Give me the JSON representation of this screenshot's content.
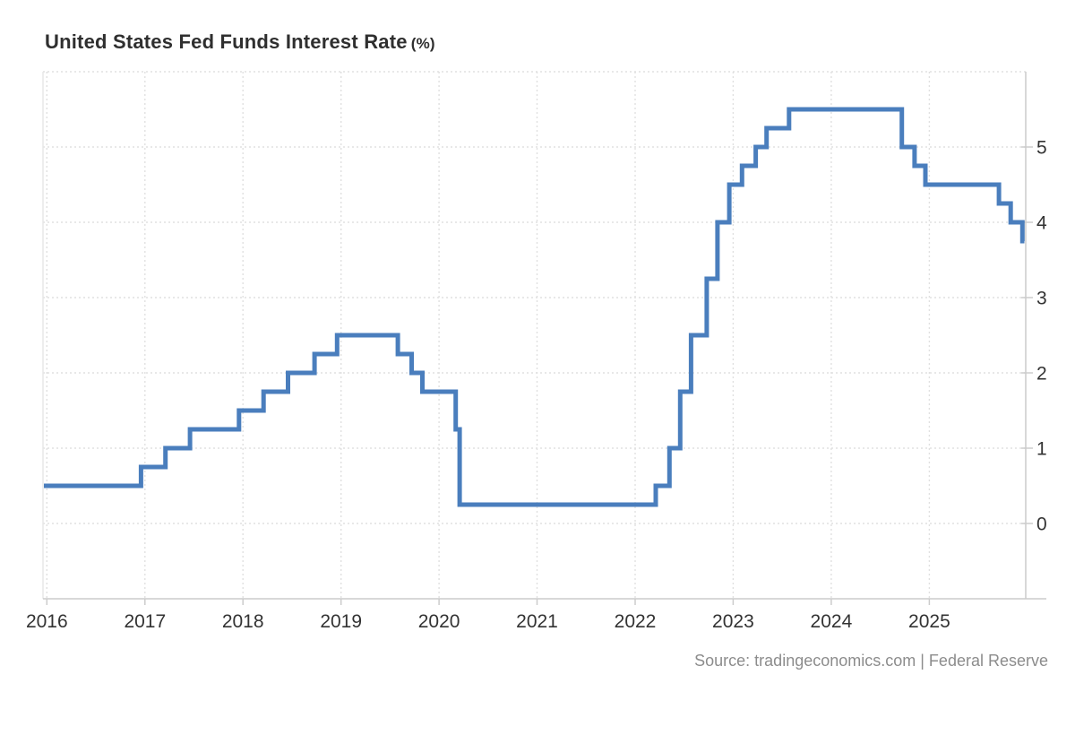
{
  "title": {
    "main": "United States Fed Funds Interest Rate",
    "unit": "(%)"
  },
  "source": "Source: tradingeconomics.com | Federal Reserve",
  "colors": {
    "line": "#4a7ebd",
    "grid": "#e0e0e0",
    "axis": "#cccccc",
    "tick_label": "#333333",
    "title_text": "#2f2f2f",
    "source_text": "#8c8c8c"
  },
  "chart_data": {
    "type": "line",
    "line_style": "step-after",
    "title": "United States Fed Funds Interest Rate (%)",
    "xlabel": "",
    "ylabel": "",
    "y_axis_side": "right",
    "grid": true,
    "legend": false,
    "x_ticks": [
      2016,
      2017,
      2018,
      2019,
      2020,
      2021,
      2022,
      2023,
      2024,
      2025
    ],
    "y_ticks": [
      0,
      1,
      2,
      3,
      4,
      5
    ],
    "x_range": [
      2016.0,
      2026.0
    ],
    "y_range": [
      -1.0,
      6.0
    ],
    "series": [
      {
        "name": "Fed Funds Interest Rate (%)",
        "points": [
          [
            2016.0,
            0.5
          ],
          [
            2016.96,
            0.75
          ],
          [
            2017.21,
            1.0
          ],
          [
            2017.46,
            1.25
          ],
          [
            2017.96,
            1.5
          ],
          [
            2018.21,
            1.75
          ],
          [
            2018.46,
            2.0
          ],
          [
            2018.73,
            2.25
          ],
          [
            2018.96,
            2.5
          ],
          [
            2019.58,
            2.25
          ],
          [
            2019.72,
            2.0
          ],
          [
            2019.83,
            1.75
          ],
          [
            2020.17,
            1.25
          ],
          [
            2020.21,
            0.25
          ],
          [
            2022.21,
            0.5
          ],
          [
            2022.35,
            1.0
          ],
          [
            2022.46,
            1.75
          ],
          [
            2022.57,
            2.5
          ],
          [
            2022.73,
            3.25
          ],
          [
            2022.84,
            4.0
          ],
          [
            2022.96,
            4.5
          ],
          [
            2023.09,
            4.75
          ],
          [
            2023.23,
            5.0
          ],
          [
            2023.34,
            5.25
          ],
          [
            2023.57,
            5.5
          ],
          [
            2024.72,
            5.0
          ],
          [
            2024.85,
            4.75
          ],
          [
            2024.96,
            4.5
          ],
          [
            2025.71,
            4.25
          ],
          [
            2025.83,
            4.0
          ],
          [
            2025.95,
            3.75
          ]
        ],
        "end_x": 2025.97,
        "last_value": 3.75
      }
    ]
  }
}
